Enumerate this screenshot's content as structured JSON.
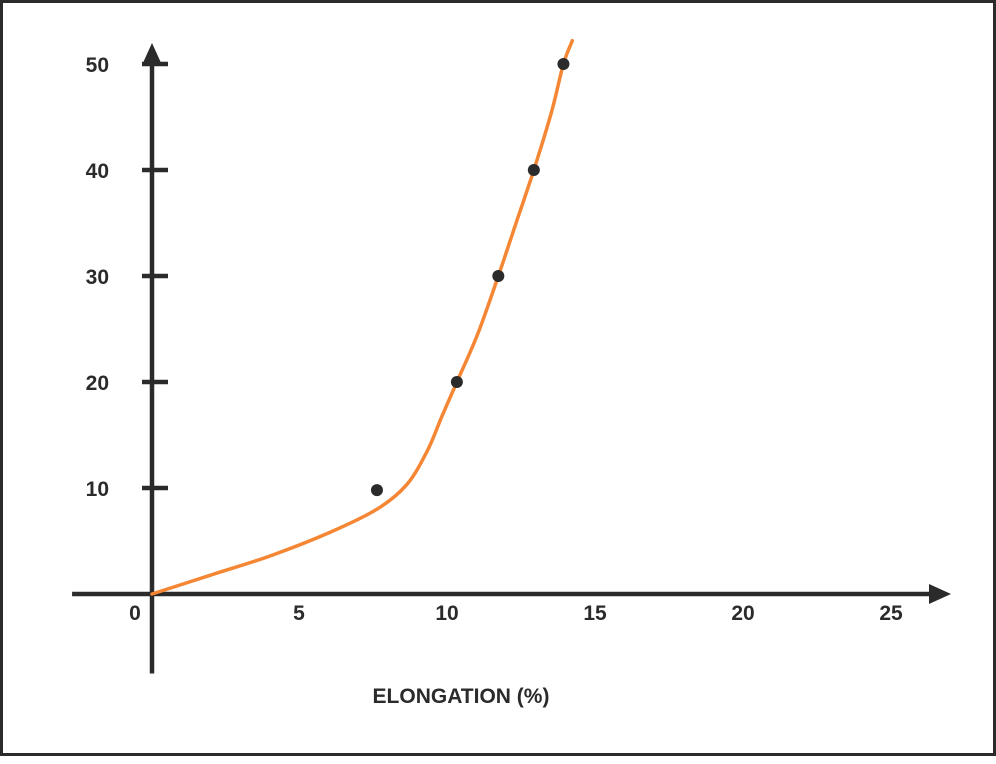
{
  "chart_data": {
    "type": "line",
    "xlabel": "ELONGATION (%)",
    "ylabel": "",
    "title": "",
    "xlim": [
      -2.7,
      27.5
    ],
    "ylim": [
      -7.5,
      51
    ],
    "x_ticks": [
      0,
      5,
      10,
      15,
      20,
      25
    ],
    "y_ticks": [
      10,
      20,
      30,
      40,
      50
    ],
    "x_tick_labels": [
      "0",
      "5",
      "10",
      "15",
      "20",
      "25"
    ],
    "y_tick_labels": [
      "10",
      "20",
      "30",
      "40",
      "50"
    ],
    "grid": false,
    "series": [
      {
        "points": [
          {
            "x": 7.6,
            "y": 9.8
          },
          {
            "x": 10.3,
            "y": 20
          },
          {
            "x": 11.7,
            "y": 30
          },
          {
            "x": 12.9,
            "y": 40
          },
          {
            "x": 13.9,
            "y": 50
          }
        ],
        "curve": [
          {
            "x": 0,
            "y": 0
          },
          {
            "x": 2,
            "y": 1.8
          },
          {
            "x": 4,
            "y": 3.6
          },
          {
            "x": 6,
            "y": 5.8
          },
          {
            "x": 7.6,
            "y": 8.0
          },
          {
            "x": 8.6,
            "y": 10.3
          },
          {
            "x": 9.3,
            "y": 13.5
          },
          {
            "x": 9.8,
            "y": 16.8
          },
          {
            "x": 10.3,
            "y": 20
          },
          {
            "x": 11.0,
            "y": 24.5
          },
          {
            "x": 11.7,
            "y": 30
          },
          {
            "x": 12.3,
            "y": 35
          },
          {
            "x": 12.9,
            "y": 40
          },
          {
            "x": 13.5,
            "y": 45.5
          },
          {
            "x": 13.9,
            "y": 50
          },
          {
            "x": 14.2,
            "y": 52.2
          }
        ]
      }
    ],
    "colors": {
      "curve": "#f58634",
      "axis": "#2b2b2b",
      "point": "#2b2b2b"
    }
  }
}
